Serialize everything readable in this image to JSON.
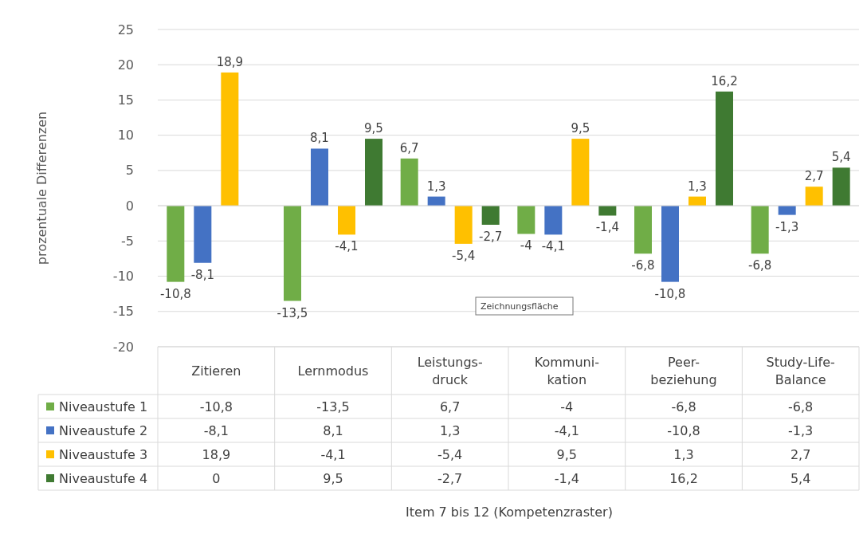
{
  "chart_data": {
    "type": "bar",
    "ylabel": "prozentuale Differenzen",
    "categories": [
      "Zitieren",
      "Lernmodus",
      "Leistungs- druck",
      "Kommuni- kation",
      "Peer- beziehung",
      "Study-Life-Balance"
    ],
    "series": [
      {
        "name": "Niveaustufe 1",
        "color": "#70ad47",
        "values": [
          -10.8,
          -13.5,
          6.7,
          -4,
          -6.8,
          -6.8
        ],
        "value_labels": [
          "-10,8",
          "-13,5",
          "6,7",
          "-4",
          "-6,8",
          "-6,8"
        ]
      },
      {
        "name": "Niveaustufe 2",
        "color": "#4472c4",
        "values": [
          -8.1,
          8.1,
          1.3,
          -4.1,
          -10.8,
          -1.3
        ],
        "value_labels": [
          "-8,1",
          "8,1",
          "1,3",
          "-4,1",
          "-10,8",
          "-1,3"
        ]
      },
      {
        "name": "Niveaustufe 3",
        "color": "#ffc000",
        "values": [
          18.9,
          -4.1,
          -5.4,
          9.5,
          1.3,
          2.7
        ],
        "value_labels": [
          "18,9",
          "-4,1",
          "-5,4",
          "9,5",
          "1,3",
          "2,7"
        ]
      },
      {
        "name": "Niveaustufe 4",
        "color": "#3f7a32",
        "values": [
          0,
          9.5,
          -2.7,
          -1.4,
          16.2,
          5.4
        ],
        "value_labels": [
          "0",
          "9,5",
          "-2,7",
          "-1,4",
          "16,2",
          "5,4"
        ]
      }
    ],
    "ylim": [
      -20,
      25
    ],
    "yticks": [
      -20,
      -15,
      -10,
      -5,
      0,
      5,
      10,
      15,
      20,
      25
    ],
    "grid": "y",
    "legend": "bottom",
    "data_labels": true,
    "annotations": [
      "Zeichnungsfläche",
      "Item 7 bis 12 (Kompetenzraster)"
    ]
  }
}
